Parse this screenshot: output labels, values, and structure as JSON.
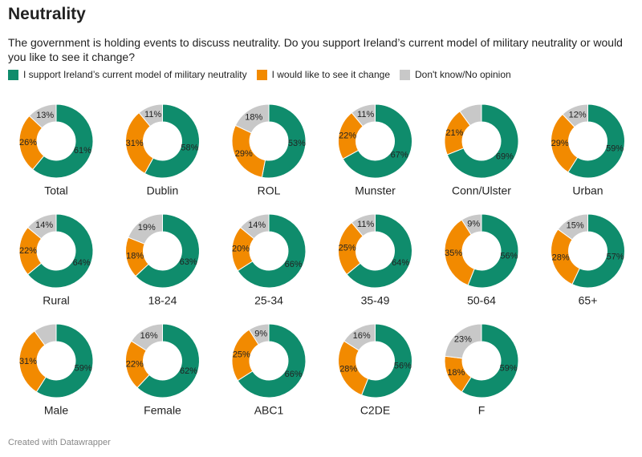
{
  "chart_data": {
    "type": "donut",
    "title": "Neutrality",
    "subtitle": "The government is holding events to discuss neutrality. Do you support Ireland’s current model of military neutrality or would you like to see it change?",
    "categories": [
      "Total",
      "Dublin",
      "ROL",
      "Munster",
      "Conn/Ulster",
      "Urban",
      "Rural",
      "18-24",
      "25-34",
      "35-49",
      "50-64",
      "65+",
      "Male",
      "Female",
      "ABC1",
      "C2DE",
      "F"
    ],
    "series": [
      {
        "name": "I support Ireland’s current model of military neutrality",
        "color": "#0f8c6c",
        "values": [
          61,
          58,
          53,
          67,
          69,
          59,
          64,
          63,
          66,
          64,
          56,
          57,
          59,
          62,
          66,
          56,
          59
        ],
        "value_labels": [
          "61%",
          "58%",
          "53%",
          "67%",
          "69%",
          "59%",
          "64%",
          "63%",
          "66%",
          "64%",
          "56%",
          "57%",
          "59%",
          "62%",
          "66%",
          "56%",
          "59%"
        ]
      },
      {
        "name": "I would like to see it change",
        "color": "#f28a00",
        "values": [
          26,
          31,
          29,
          22,
          21,
          29,
          22,
          18,
          20,
          25,
          35,
          28,
          31,
          22,
          25,
          28,
          18
        ],
        "value_labels": [
          "26%",
          "31%",
          "29%",
          "22%",
          "21%",
          "29%",
          "22%",
          "18%",
          "20%",
          "25%",
          "35%",
          "28%",
          "31%",
          "22%",
          "25%",
          "28%",
          "18%"
        ]
      },
      {
        "name": "Don't know/No opinion",
        "color": "#c8c8c8",
        "values": [
          13,
          11,
          18,
          11,
          10,
          12,
          14,
          19,
          14,
          11,
          9,
          15,
          10,
          16,
          9,
          16,
          23
        ],
        "value_labels": [
          "13%",
          "11%",
          "18%",
          "11%",
          null,
          "12%",
          "14%",
          "19%",
          "14%",
          "11%",
          "9%",
          "15%",
          null,
          "16%",
          "9%",
          "16%",
          "23%"
        ]
      }
    ]
  },
  "footer": "Created with Datawrapper"
}
